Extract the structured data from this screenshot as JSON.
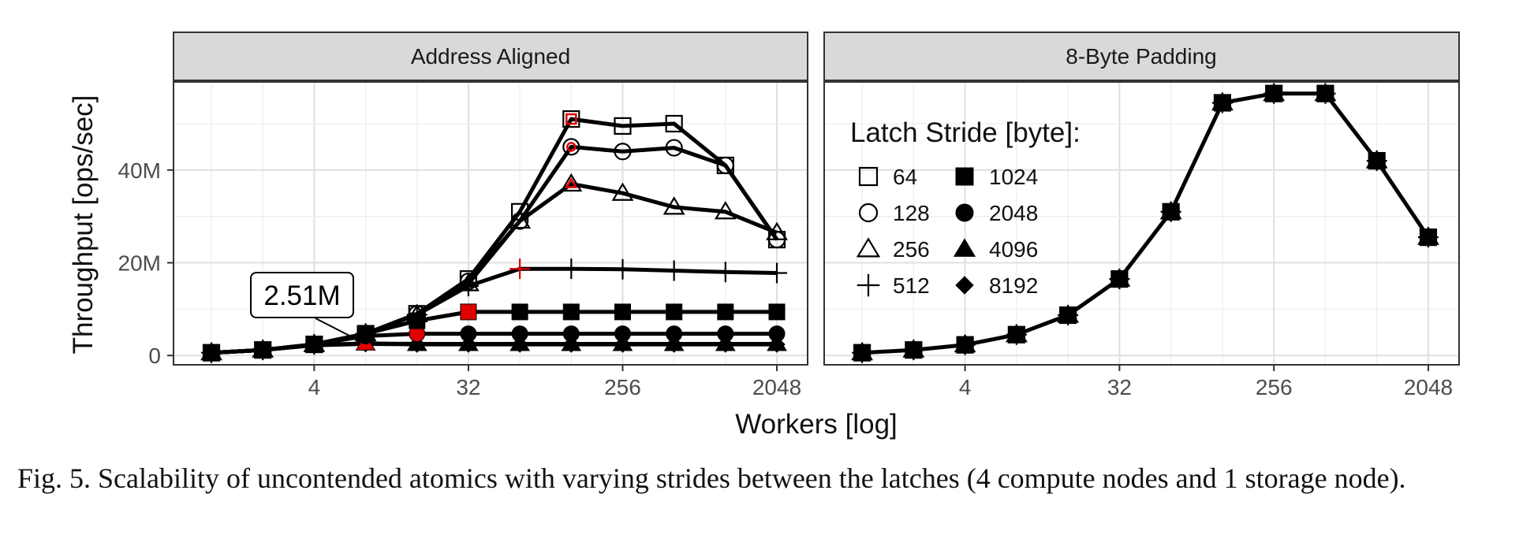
{
  "figure": {
    "caption": "Fig. 5.  Scalability of uncontended atomics with varying strides between the latches (4 compute nodes and 1 storage node)."
  },
  "chart_data": {
    "type": "line",
    "x_scale": "log2",
    "xlabel": "Workers [log]",
    "ylabel": "Throughput [ops/sec]",
    "x_ticks": [
      4,
      32,
      256,
      2048
    ],
    "x_tick_labels": [
      "4",
      "32",
      "256",
      "2048"
    ],
    "y_ticks": [
      0,
      20000000,
      40000000
    ],
    "y_tick_labels": [
      "0",
      "20M",
      "40M"
    ],
    "ylim": [
      -2000000,
      59000000
    ],
    "xlim": [
      0.6,
      3100
    ],
    "grid": true,
    "legend": {
      "title": "Latch Stride [byte]:",
      "placement": "inside top-left of right panel",
      "entries": [
        {
          "label": "64",
          "marker": "square-open"
        },
        {
          "label": "1024",
          "marker": "square-filled"
        },
        {
          "label": "128",
          "marker": "circle-open"
        },
        {
          "label": "2048",
          "marker": "circle-filled"
        },
        {
          "label": "256",
          "marker": "triangle-open"
        },
        {
          "label": "4096",
          "marker": "triangle-filled"
        },
        {
          "label": "512",
          "marker": "plus"
        },
        {
          "label": "8192",
          "marker": "diamond-filled"
        }
      ]
    },
    "highlight_color": "#e00000",
    "panels": [
      {
        "title": "Address Aligned",
        "annotation": {
          "text": "2.51M",
          "x": 8,
          "y": 2510000
        },
        "series": [
          {
            "stride": "64",
            "marker": "square-open",
            "x": [
              1,
              2,
              4,
              8,
              16,
              32,
              64,
              128,
              256,
              512,
              1024,
              2048
            ],
            "y": [
              600000,
              1200000,
              2400000,
              4700000,
              9000000,
              16500000,
              31000000,
              51000000,
              49500000,
              50000000,
              41000000,
              25000000
            ],
            "highlight_x": 128
          },
          {
            "stride": "128",
            "marker": "circle-open",
            "x": [
              1,
              2,
              4,
              8,
              16,
              32,
              64,
              128,
              256,
              512,
              1024,
              2048
            ],
            "y": [
              600000,
              1200000,
              2400000,
              4700000,
              9000000,
              16000000,
              29000000,
              45000000,
              44000000,
              44800000,
              41000000,
              25000000
            ],
            "highlight_x": 128
          },
          {
            "stride": "256",
            "marker": "triangle-open",
            "x": [
              1,
              2,
              4,
              8,
              16,
              32,
              64,
              128,
              256,
              512,
              1024,
              2048
            ],
            "y": [
              600000,
              1200000,
              2400000,
              4700000,
              8800000,
              15500000,
              29000000,
              37000000,
              35000000,
              32000000,
              31000000,
              26500000
            ],
            "highlight_x": 128
          },
          {
            "stride": "512",
            "marker": "plus",
            "x": [
              1,
              2,
              4,
              8,
              16,
              32,
              64,
              128,
              256,
              512,
              1024,
              2048
            ],
            "y": [
              600000,
              1200000,
              2400000,
              4700000,
              8800000,
              15000000,
              18700000,
              18700000,
              18600000,
              18300000,
              18000000,
              17800000
            ],
            "highlight_x": 64
          },
          {
            "stride": "1024",
            "marker": "square-filled",
            "x": [
              1,
              2,
              4,
              8,
              16,
              32,
              64,
              128,
              256,
              512,
              1024,
              2048
            ],
            "y": [
              600000,
              1200000,
              2400000,
              4700000,
              7500000,
              9400000,
              9400000,
              9400000,
              9400000,
              9400000,
              9400000,
              9400000
            ],
            "highlight_x": 32
          },
          {
            "stride": "2048",
            "marker": "circle-filled",
            "x": [
              1,
              2,
              4,
              8,
              16,
              32,
              64,
              128,
              256,
              512,
              1024,
              2048
            ],
            "y": [
              600000,
              1200000,
              2400000,
              4200000,
              4700000,
              4700000,
              4700000,
              4700000,
              4700000,
              4700000,
              4700000,
              4700000
            ],
            "highlight_x": 16
          },
          {
            "stride": "4096",
            "marker": "triangle-filled",
            "x": [
              1,
              2,
              4,
              8,
              16,
              32,
              64,
              128,
              256,
              512,
              1024,
              2048
            ],
            "y": [
              600000,
              1200000,
              2300000,
              2600000,
              2500000,
              2500000,
              2500000,
              2500000,
              2500000,
              2500000,
              2500000,
              2500000
            ],
            "highlight_x": 8
          },
          {
            "stride": "8192",
            "marker": "diamond-filled",
            "x": [
              1,
              2,
              4,
              8,
              16,
              32,
              64,
              128,
              256,
              512,
              1024,
              2048
            ],
            "y": [
              600000,
              1200000,
              2200000,
              2500000,
              2400000,
              2400000,
              2400000,
              2400000,
              2400000,
              2400000,
              2400000,
              2400000
            ],
            "highlight_x": null
          }
        ]
      },
      {
        "title": "8-Byte Padding",
        "annotation": null,
        "series": [
          {
            "stride": "all",
            "marker": "overlaid",
            "x": [
              1,
              2,
              4,
              8,
              16,
              32,
              64,
              128,
              256,
              512,
              1024,
              2048
            ],
            "y": [
              600000,
              1200000,
              2300000,
              4500000,
              8700000,
              16500000,
              31000000,
              54500000,
              56500000,
              56500000,
              42000000,
              25500000
            ],
            "highlight_x": null
          }
        ]
      }
    ]
  }
}
